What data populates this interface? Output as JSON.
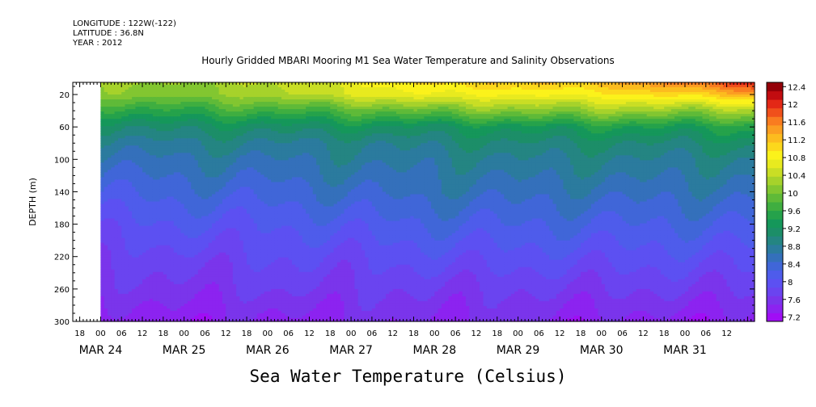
{
  "header": {
    "longitude": "LONGITUDE : 122W(-122)",
    "latitude": "LATITUDE : 36.8N",
    "year": "YEAR : 2012",
    "title": "Hourly Gridded MBARI Mooring M1 Sea Water Temperature and Salinity Observations"
  },
  "footer": {
    "variable_label": "Sea Water Temperature (Celsius)"
  },
  "chart_data": {
    "type": "heatmap",
    "title": "Hourly Gridded MBARI Mooring M1 Sea Water Temperature and Salinity Observations",
    "xlabel": "",
    "ylabel": "DEPTH (m)",
    "colorbar_label": "Sea Water Temperature (Celsius)",
    "x_range_hours": [
      -8,
      188
    ],
    "data_start_hour": 0,
    "y_range": [
      300,
      5
    ],
    "y_ticks": [
      20,
      60,
      100,
      140,
      180,
      220,
      260,
      300
    ],
    "x_hour_ticks": [
      "18",
      "00",
      "06",
      "12",
      "18",
      "00",
      "06",
      "12",
      "18",
      "00",
      "06",
      "12",
      "18",
      "00",
      "06",
      "12",
      "18",
      "00",
      "06",
      "12",
      "18",
      "00",
      "06",
      "12",
      "18",
      "00",
      "06",
      "12",
      "18",
      "00",
      "06",
      "12"
    ],
    "x_day_labels": [
      "MAR 24",
      "MAR 25",
      "MAR 26",
      "MAR 27",
      "MAR 28",
      "MAR 29",
      "MAR 30",
      "MAR 31"
    ],
    "colorbar_ticks": [
      "7.2",
      "7.6",
      "8",
      "8.4",
      "8.8",
      "9.2",
      "9.6",
      "10",
      "10.4",
      "10.8",
      "11.2",
      "11.6",
      "12",
      "12.4"
    ],
    "color_levels": [
      7.2,
      7.4,
      7.6,
      7.8,
      8.0,
      8.2,
      8.4,
      8.6,
      8.8,
      9.0,
      9.2,
      9.4,
      9.6,
      9.8,
      10.0,
      10.2,
      10.4,
      10.6,
      10.8,
      11.0,
      11.2,
      11.4,
      11.6,
      11.8,
      12.0,
      12.2,
      12.4
    ],
    "colors": [
      "#a00ef5",
      "#8c23f0",
      "#7a35eb",
      "#6a44f0",
      "#5c50f2",
      "#4e5ceb",
      "#4066d8",
      "#3470bb",
      "#2b7b9e",
      "#248582",
      "#1c8e68",
      "#15975a",
      "#25a24b",
      "#3fae40",
      "#5fba38",
      "#82c631",
      "#a6d22b",
      "#c9de25",
      "#e8ea1f",
      "#fbf21b",
      "#fcd81c",
      "#fcbc1f",
      "#fb9e22",
      "#f97c20",
      "#f0501b",
      "#e32816",
      "#c20c10",
      "#940008"
    ],
    "temperature_samples": {
      "depths_m": [
        5,
        20,
        40,
        60,
        80,
        100,
        140,
        180,
        220,
        260,
        300
      ],
      "times_hour": [
        0,
        24,
        48,
        72,
        96,
        120,
        144,
        168,
        188
      ],
      "values_C": [
        [
          10.4,
          10.4,
          10.6,
          10.9,
          11.3,
          11.4,
          11.5,
          11.9,
          12.4
        ],
        [
          10.3,
          10.3,
          10.5,
          10.8,
          11.0,
          11.0,
          11.1,
          11.3,
          11.6
        ],
        [
          9.7,
          9.8,
          9.9,
          10.0,
          10.2,
          10.3,
          10.4,
          10.4,
          10.5
        ],
        [
          9.2,
          9.3,
          9.3,
          9.4,
          9.4,
          9.5,
          9.6,
          9.6,
          9.7
        ],
        [
          8.9,
          9.0,
          9.0,
          9.0,
          9.1,
          9.2,
          9.2,
          9.2,
          9.3
        ],
        [
          8.7,
          8.8,
          8.8,
          8.9,
          8.9,
          9.0,
          9.0,
          9.0,
          9.0
        ],
        [
          8.4,
          8.5,
          8.5,
          8.6,
          8.7,
          8.7,
          8.7,
          8.7,
          8.7
        ],
        [
          8.1,
          8.2,
          8.2,
          8.3,
          8.4,
          8.4,
          8.4,
          8.4,
          8.4
        ],
        [
          7.9,
          7.9,
          8.0,
          8.0,
          8.1,
          8.1,
          8.1,
          8.1,
          8.1
        ],
        [
          7.7,
          7.7,
          7.8,
          7.8,
          7.8,
          7.8,
          7.8,
          7.8,
          7.8
        ],
        [
          7.4,
          7.5,
          7.5,
          7.6,
          7.6,
          7.6,
          7.5,
          7.5,
          7.5
        ]
      ]
    },
    "legend_placement": "right"
  }
}
